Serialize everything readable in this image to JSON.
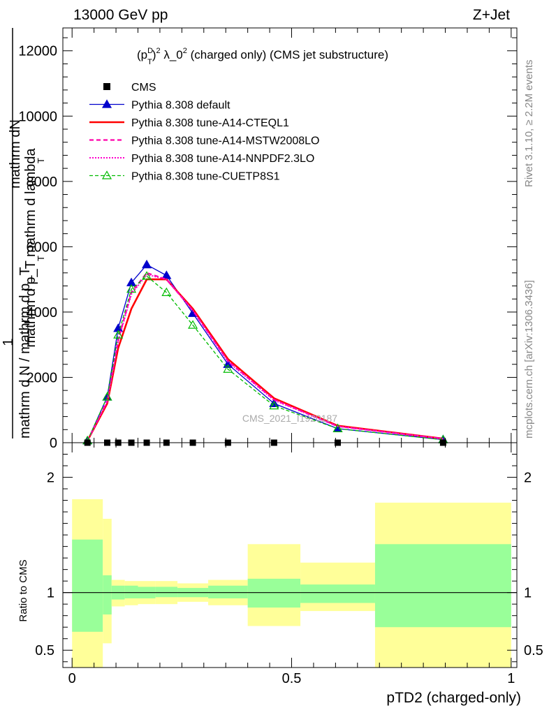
{
  "header": {
    "energy_label": "13000 GeV pp",
    "process_label": "Z+Jet",
    "rivet_label": "Rivet 3.1.10, ≥ 2.2M events",
    "mcplots_label": "mcplots.cern.ch [arXiv:1306.3436]",
    "watermark": "CMS_2021_I1920187"
  },
  "chart_data": [
    {
      "type": "line",
      "title": "(p_T^D)^2 λ_0^2 (charged only) (CMS jet substructure)",
      "title_parts": {
        "lead": "(p",
        "sup1": "D",
        "sub1": "T",
        "mid": ")",
        "sup2": "2",
        "rest": " λ_0",
        "sup3": "2",
        "tail": " (charged only) (CMS jet substructure)"
      },
      "ylabel_top": "mathrm dN",
      "ylabel_sub": "mathrm d p_T mathrm d lambda",
      "ylabel_frac_num": "1",
      "ylabel_frac_den": "mathrm d N / mathrm d p_T",
      "ylabel_T1": "T",
      "ylabel_T2": "T",
      "xlim": [
        0,
        1
      ],
      "ylim": [
        0,
        12000
      ],
      "yticks": [
        0,
        2000,
        4000,
        6000,
        8000,
        10000,
        12000
      ],
      "ytick_labels": [
        "0",
        "2000",
        "4000",
        "6000",
        "8000",
        "10000",
        "12000"
      ],
      "legend_position": "top-left",
      "x": [
        0.035,
        0.08,
        0.105,
        0.135,
        0.17,
        0.215,
        0.275,
        0.355,
        0.46,
        0.605,
        0.845
      ],
      "series": [
        {
          "name": "CMS",
          "color": "#000000",
          "style": "marker-only",
          "values": [
            0,
            0,
            0,
            0,
            0,
            0,
            0,
            0,
            0,
            0,
            0
          ]
        },
        {
          "name": "Pythia 8.308 default",
          "color": "#0000cc",
          "style": "solid-triangle",
          "values": [
            60,
            1400,
            3500,
            4900,
            5450,
            5120,
            3960,
            2400,
            1200,
            430,
            95
          ]
        },
        {
          "name": "Pythia 8.308 tune-A14-CTEQL1",
          "color": "#ff0000",
          "style": "solid-thick",
          "values": [
            60,
            1200,
            2900,
            4100,
            5000,
            5000,
            4100,
            2560,
            1360,
            520,
            125
          ]
        },
        {
          "name": "Pythia 8.308 tune-A14-MSTW2008LO",
          "color": "#ff00aa",
          "style": "dashed",
          "values": [
            60,
            1280,
            3150,
            4600,
            5200,
            5000,
            4050,
            2500,
            1320,
            500,
            120
          ]
        },
        {
          "name": "Pythia 8.308 tune-A14-NNPDF2.3LO",
          "color": "#ff00cc",
          "style": "dotted",
          "values": [
            60,
            1250,
            3100,
            4550,
            5150,
            5000,
            4050,
            2480,
            1300,
            500,
            120
          ]
        },
        {
          "name": "Pythia 8.308 tune-CUETP8S1",
          "color": "#00bb00",
          "style": "dashed-open-triangle",
          "values": [
            60,
            1400,
            3300,
            4700,
            5100,
            4600,
            3600,
            2250,
            1130,
            430,
            90
          ]
        }
      ]
    },
    {
      "type": "area",
      "ylabel": "Ratio to CMS",
      "xlabel": "pTD2 (charged-only)",
      "xlim": [
        0,
        1
      ],
      "ylim": [
        0.35,
        2.3
      ],
      "yticks": [
        0.5,
        1,
        2
      ],
      "ytick_labels": [
        "0.5",
        "1",
        "2"
      ],
      "xticks": [
        0,
        0.5,
        1
      ],
      "xtick_labels": [
        "0",
        "0.5",
        "1"
      ],
      "reference": 1,
      "band_colors": {
        "outer": "#ffff99",
        "inner": "#99ff99",
        "line": "#000000"
      },
      "bins": [
        {
          "lo": 0.0,
          "hi": 0.07,
          "outer": [
            0.35,
            1.81
          ],
          "inner": [
            0.66,
            1.46
          ]
        },
        {
          "lo": 0.07,
          "hi": 0.09,
          "outer": [
            0.56,
            1.64
          ],
          "inner": [
            0.81,
            1.15
          ]
        },
        {
          "lo": 0.09,
          "hi": 0.12,
          "outer": [
            0.88,
            1.11
          ],
          "inner": [
            0.94,
            1.06
          ]
        },
        {
          "lo": 0.12,
          "hi": 0.15,
          "outer": [
            0.89,
            1.1
          ],
          "inner": [
            0.95,
            1.06
          ]
        },
        {
          "lo": 0.15,
          "hi": 0.19,
          "outer": [
            0.9,
            1.1
          ],
          "inner": [
            0.95,
            1.05
          ]
        },
        {
          "lo": 0.19,
          "hi": 0.24,
          "outer": [
            0.9,
            1.1
          ],
          "inner": [
            0.96,
            1.05
          ]
        },
        {
          "lo": 0.24,
          "hi": 0.31,
          "outer": [
            0.92,
            1.08
          ],
          "inner": [
            0.96,
            1.04
          ]
        },
        {
          "lo": 0.31,
          "hi": 0.4,
          "outer": [
            0.89,
            1.11
          ],
          "inner": [
            0.95,
            1.06
          ]
        },
        {
          "lo": 0.4,
          "hi": 0.52,
          "outer": [
            0.71,
            1.42
          ],
          "inner": [
            0.87,
            1.12
          ]
        },
        {
          "lo": 0.52,
          "hi": 0.69,
          "outer": [
            0.84,
            1.26
          ],
          "inner": [
            0.91,
            1.07
          ]
        },
        {
          "lo": 0.69,
          "hi": 1.0,
          "outer": [
            0.35,
            1.78
          ],
          "inner": [
            0.7,
            1.42
          ]
        }
      ]
    }
  ]
}
